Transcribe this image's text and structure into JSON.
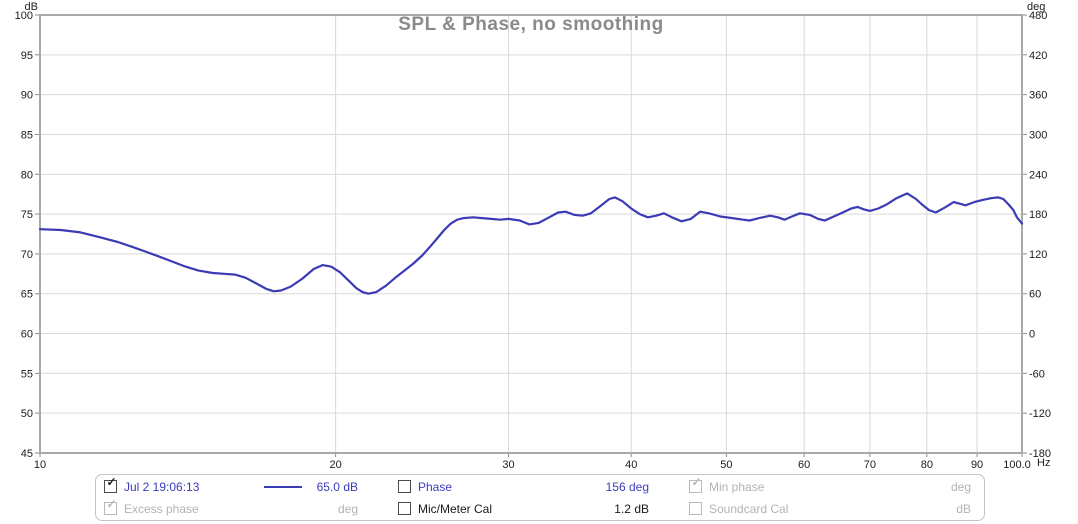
{
  "colors": {
    "trace": "#3b3bb5",
    "accent_text": "#3c3cc0",
    "disabled_text": "#b3b3b3",
    "title_text": "#8a8a8a",
    "grid": "#d9d9d9",
    "plot_border": "#a8a8a8"
  },
  "chart_data": {
    "type": "line",
    "title": "SPL & Phase, no smoothing",
    "x_unit": "Hz",
    "y_left_unit": "dB",
    "y_right_unit": "deg",
    "x_scale": "log",
    "xlim": [
      10,
      100
    ],
    "ylim": [
      45,
      100
    ],
    "y2lim": [
      -180,
      480
    ],
    "grid": true,
    "yticks_left": [
      100,
      95,
      90,
      85,
      80,
      75,
      70,
      65,
      60,
      55,
      50,
      45
    ],
    "yticks_right": [
      480,
      420,
      360,
      300,
      240,
      180,
      120,
      60,
      0,
      -60,
      -120,
      -180
    ],
    "xticks": [
      {
        "f": 10,
        "label": "10"
      },
      {
        "f": 20,
        "label": "20"
      },
      {
        "f": 30,
        "label": "30"
      },
      {
        "f": 40,
        "label": "40"
      },
      {
        "f": 50,
        "label": "50"
      },
      {
        "f": 60,
        "label": "60"
      },
      {
        "f": 70,
        "label": "70"
      },
      {
        "f": 80,
        "label": "80"
      },
      {
        "f": 90,
        "label": "90"
      },
      {
        "f": 100,
        "label": "100.0"
      }
    ],
    "series": [
      {
        "name": "Jul 2 19:06:13",
        "unit": "dB",
        "axis": "left",
        "points": [
          [
            10,
            73.1
          ],
          [
            10.5,
            73.0
          ],
          [
            11,
            72.7
          ],
          [
            11.5,
            72.1
          ],
          [
            12,
            71.5
          ],
          [
            12.4,
            70.9
          ],
          [
            12.8,
            70.3
          ],
          [
            13.2,
            69.7
          ],
          [
            13.6,
            69.1
          ],
          [
            14,
            68.5
          ],
          [
            14.5,
            67.9
          ],
          [
            15,
            67.6
          ],
          [
            15.4,
            67.5
          ],
          [
            15.8,
            67.4
          ],
          [
            16.2,
            67.0
          ],
          [
            16.6,
            66.3
          ],
          [
            17,
            65.6
          ],
          [
            17.3,
            65.3
          ],
          [
            17.6,
            65.4
          ],
          [
            18,
            65.9
          ],
          [
            18.5,
            66.9
          ],
          [
            19,
            68.1
          ],
          [
            19.4,
            68.6
          ],
          [
            19.8,
            68.4
          ],
          [
            20.2,
            67.7
          ],
          [
            20.6,
            66.7
          ],
          [
            21,
            65.7
          ],
          [
            21.3,
            65.2
          ],
          [
            21.6,
            65.0
          ],
          [
            22,
            65.2
          ],
          [
            22.5,
            66.0
          ],
          [
            23,
            67.0
          ],
          [
            23.5,
            67.9
          ],
          [
            24,
            68.8
          ],
          [
            24.5,
            69.8
          ],
          [
            25,
            71.0
          ],
          [
            25.4,
            72.0
          ],
          [
            25.8,
            73.0
          ],
          [
            26.2,
            73.8
          ],
          [
            26.6,
            74.3
          ],
          [
            27,
            74.5
          ],
          [
            27.6,
            74.6
          ],
          [
            28.2,
            74.5
          ],
          [
            28.8,
            74.4
          ],
          [
            29.4,
            74.3
          ],
          [
            30,
            74.4
          ],
          [
            30.8,
            74.2
          ],
          [
            31.5,
            73.7
          ],
          [
            32.2,
            73.9
          ],
          [
            33,
            74.6
          ],
          [
            33.7,
            75.2
          ],
          [
            34.3,
            75.3
          ],
          [
            35,
            74.9
          ],
          [
            35.7,
            74.8
          ],
          [
            36.4,
            75.1
          ],
          [
            37.2,
            76.0
          ],
          [
            38,
            76.9
          ],
          [
            38.5,
            77.1
          ],
          [
            39.2,
            76.6
          ],
          [
            40,
            75.7
          ],
          [
            40.8,
            75.0
          ],
          [
            41.6,
            74.6
          ],
          [
            42.4,
            74.8
          ],
          [
            43.2,
            75.1
          ],
          [
            44,
            74.6
          ],
          [
            45,
            74.1
          ],
          [
            46,
            74.4
          ],
          [
            47,
            75.3
          ],
          [
            48,
            75.1
          ],
          [
            49.3,
            74.7
          ],
          [
            50.7,
            74.5
          ],
          [
            52,
            74.3
          ],
          [
            52.8,
            74.2
          ],
          [
            54,
            74.5
          ],
          [
            55.4,
            74.8
          ],
          [
            56.4,
            74.6
          ],
          [
            57.3,
            74.3
          ],
          [
            58.3,
            74.7
          ],
          [
            59.4,
            75.1
          ],
          [
            60.8,
            74.9
          ],
          [
            62,
            74.4
          ],
          [
            63,
            74.2
          ],
          [
            64.3,
            74.7
          ],
          [
            65.7,
            75.2
          ],
          [
            67,
            75.7
          ],
          [
            68,
            75.9
          ],
          [
            69,
            75.6
          ],
          [
            70,
            75.4
          ],
          [
            71.4,
            75.7
          ],
          [
            72.8,
            76.2
          ],
          [
            74.5,
            77.0
          ],
          [
            76.4,
            77.6
          ],
          [
            78,
            76.9
          ],
          [
            79.1,
            76.2
          ],
          [
            80.4,
            75.5
          ],
          [
            81.7,
            75.2
          ],
          [
            83.4,
            75.8
          ],
          [
            85.2,
            76.5
          ],
          [
            86.4,
            76.3
          ],
          [
            87.6,
            76.1
          ],
          [
            89.4,
            76.5
          ],
          [
            91.3,
            76.8
          ],
          [
            93,
            77.0
          ],
          [
            94.6,
            77.1
          ],
          [
            95.7,
            76.9
          ],
          [
            96.9,
            76.2
          ],
          [
            98,
            75.5
          ],
          [
            98.8,
            74.6
          ],
          [
            100,
            73.8
          ]
        ]
      }
    ]
  },
  "legend": {
    "rows": [
      {
        "trace": {
          "label": "Jul 2 19:06:13",
          "checked": true,
          "disabled": false
        },
        "level_value": "65.0 dB",
        "phase": {
          "label": "Phase",
          "checked": false,
          "disabled": false
        },
        "phase_value": "156 deg",
        "min_phase": {
          "label": "Min phase",
          "checked": true,
          "disabled": true
        },
        "min_phase_unit": "deg"
      },
      {
        "excess_phase": {
          "label": "Excess phase",
          "checked": true,
          "disabled": true
        },
        "excess_unit": "deg",
        "mic_cal": {
          "label": "Mic/Meter Cal",
          "checked": false,
          "disabled": false
        },
        "mic_cal_value": "1.2 dB",
        "soundcard_cal": {
          "label": "Soundcard Cal",
          "checked": false,
          "disabled": true
        },
        "soundcard_unit": "dB"
      }
    ]
  }
}
